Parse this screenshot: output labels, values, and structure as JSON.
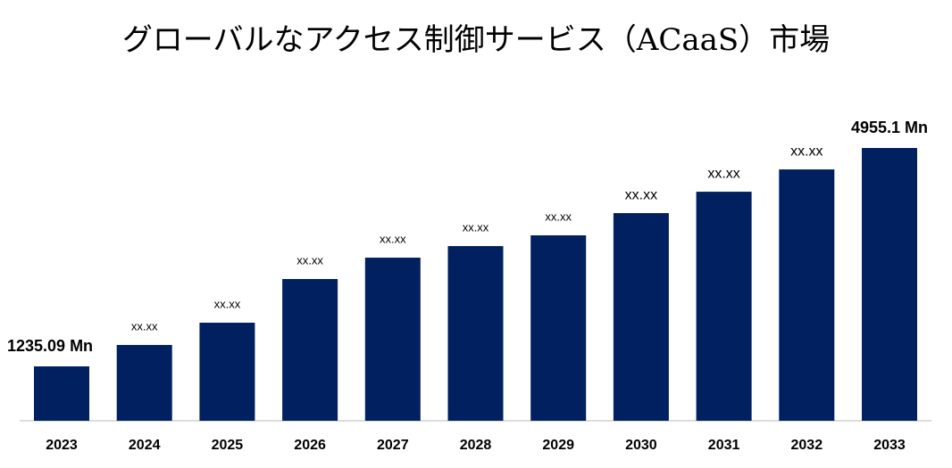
{
  "chart_data": {
    "type": "bar",
    "title": "グローバルなアクセス制御サービス（ACaaS）市場",
    "categories": [
      "2023",
      "2024",
      "2025",
      "2026",
      "2027",
      "2028",
      "2029",
      "2030",
      "2031",
      "2032",
      "2033"
    ],
    "values": [
      1235.09,
      1600,
      1979,
      2723,
      3087,
      3284,
      3467,
      3846,
      4210,
      4590,
      4955.1
    ],
    "value_labels": [
      "1235.09 Mn",
      "xx.xx",
      "xx.xx",
      "xx.xx",
      "xx.xx",
      "xx.xx",
      "xx.xx",
      "xx.xx",
      "xx.xx",
      "xx.xx",
      "4955.1 Mn"
    ],
    "color": "#002060"
  }
}
